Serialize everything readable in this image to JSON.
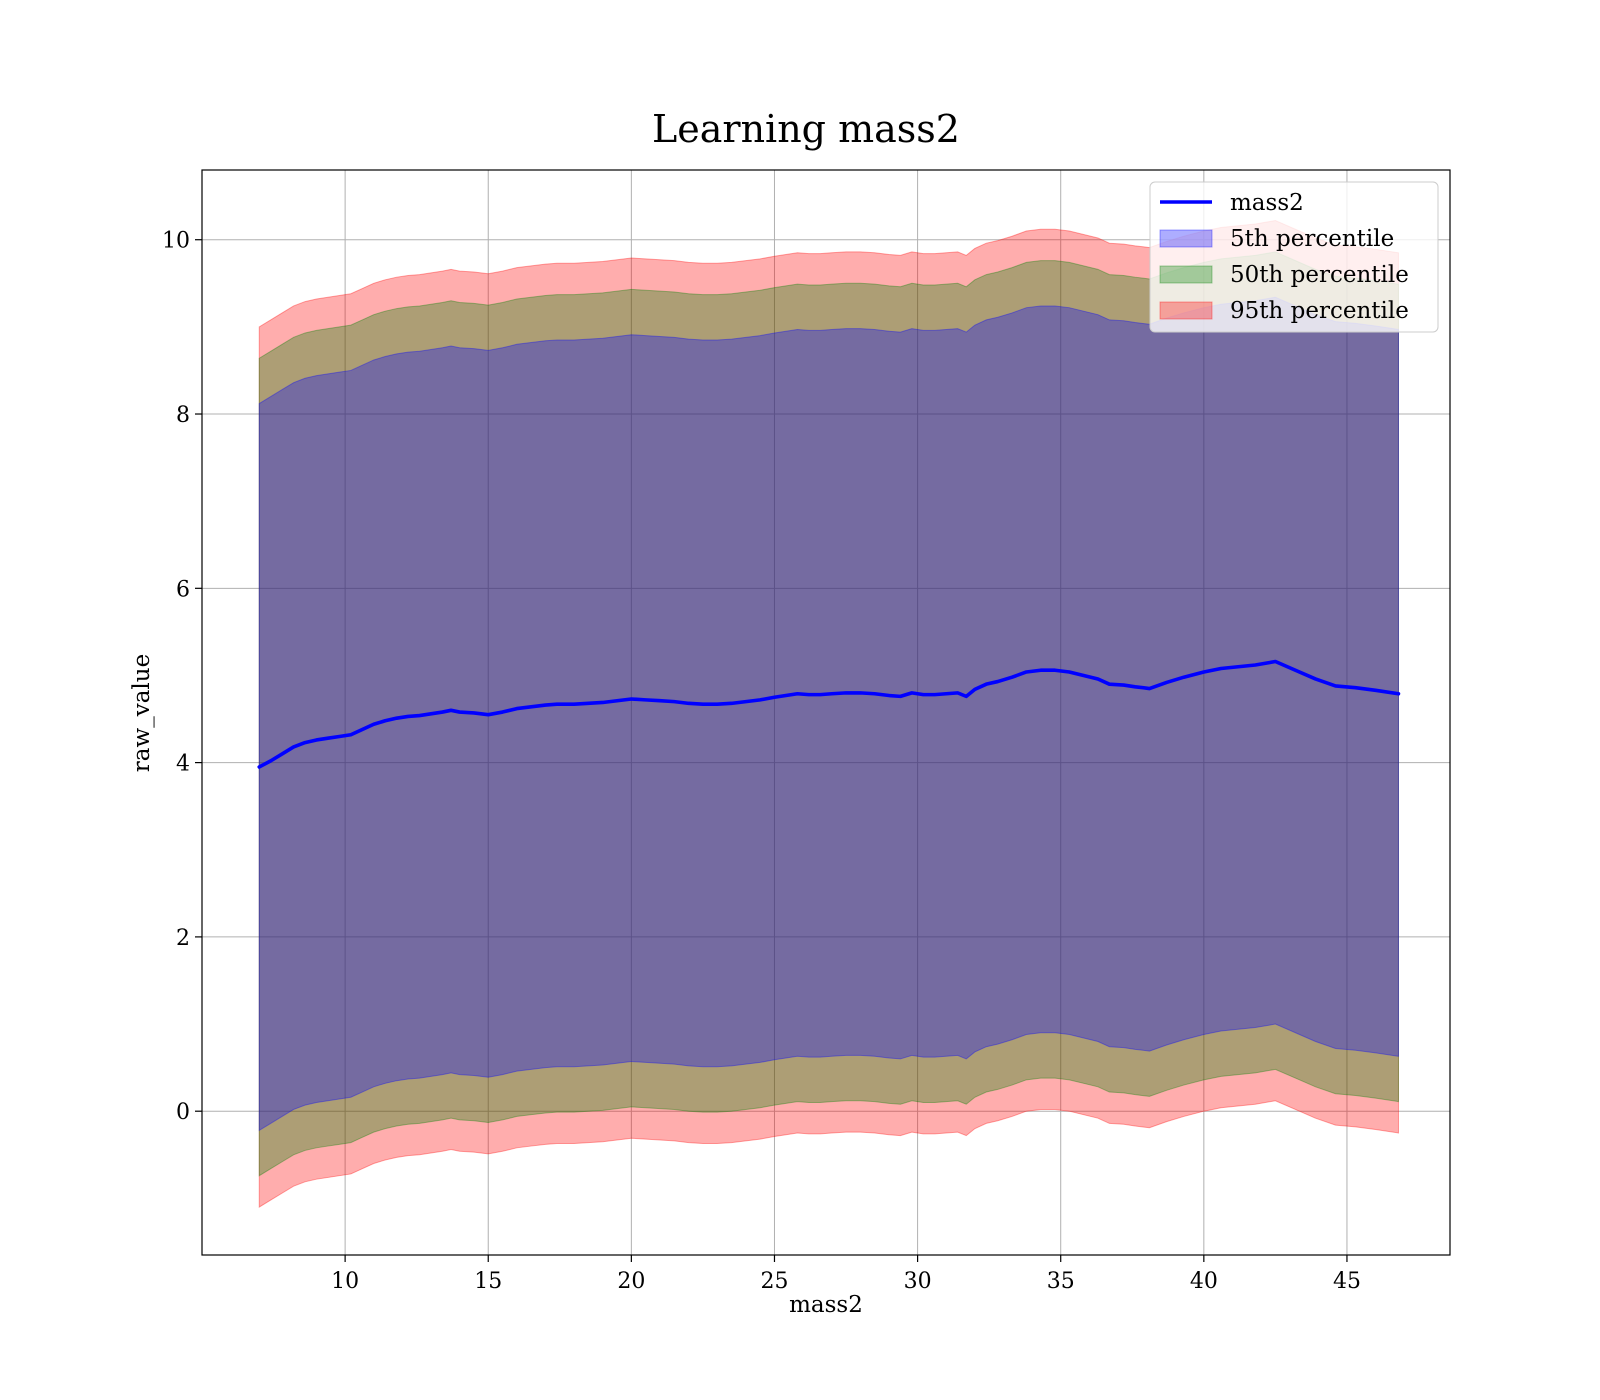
{
  "chart_data": {
    "type": "area",
    "title": "Learning mass2",
    "xlabel": "mass2",
    "ylabel": "raw_value",
    "xlim": [
      5.0,
      48.6
    ],
    "ylim": [
      -1.65,
      10.8
    ],
    "xticks": [
      10,
      15,
      20,
      25,
      30,
      35,
      40,
      45
    ],
    "yticks": [
      0,
      2,
      4,
      6,
      8,
      10
    ],
    "grid": true,
    "legend_position": "top-right",
    "x": [
      7.0,
      7.4,
      7.8,
      8.2,
      8.6,
      9.0,
      9.4,
      9.8,
      10.2,
      10.6,
      11.0,
      11.4,
      11.8,
      12.2,
      12.6,
      13.0,
      13.4,
      13.7,
      14.0,
      14.5,
      15.0,
      15.5,
      16.0,
      16.5,
      17.0,
      17.4,
      18.0,
      18.5,
      19.0,
      19.5,
      20.0,
      20.5,
      21.0,
      21.5,
      22.0,
      22.5,
      23.0,
      23.5,
      24.0,
      24.5,
      25.0,
      25.4,
      25.8,
      26.2,
      26.6,
      27.0,
      27.5,
      28.0,
      28.5,
      29.0,
      29.4,
      29.8,
      30.2,
      30.6,
      31.0,
      31.4,
      31.7,
      32.0,
      32.4,
      32.8,
      33.3,
      33.8,
      34.3,
      34.8,
      35.3,
      35.8,
      36.3,
      36.7,
      37.2,
      37.6,
      38.1,
      38.7,
      39.3,
      40.0,
      40.6,
      41.2,
      41.8,
      42.5,
      43.2,
      43.9,
      44.6,
      45.3,
      46.0,
      46.8
    ],
    "series": [
      {
        "name": "mass2",
        "kind": "line",
        "color": "#0000ff",
        "values": [
          3.95,
          4.02,
          4.1,
          4.18,
          4.23,
          4.26,
          4.28,
          4.3,
          4.32,
          4.38,
          4.44,
          4.48,
          4.51,
          4.53,
          4.54,
          4.56,
          4.58,
          4.6,
          4.58,
          4.57,
          4.55,
          4.58,
          4.62,
          4.64,
          4.66,
          4.67,
          4.67,
          4.68,
          4.69,
          4.71,
          4.73,
          4.72,
          4.71,
          4.7,
          4.68,
          4.67,
          4.67,
          4.68,
          4.7,
          4.72,
          4.75,
          4.77,
          4.79,
          4.78,
          4.78,
          4.79,
          4.8,
          4.8,
          4.79,
          4.77,
          4.76,
          4.8,
          4.78,
          4.78,
          4.79,
          4.8,
          4.76,
          4.84,
          4.9,
          4.93,
          4.98,
          5.04,
          5.06,
          5.06,
          5.04,
          5.0,
          4.96,
          4.9,
          4.89,
          4.87,
          4.85,
          4.92,
          4.98,
          5.04,
          5.08,
          5.1,
          5.12,
          5.16,
          5.06,
          4.96,
          4.88,
          4.86,
          4.83,
          4.79
        ]
      },
      {
        "name": "5th percentile",
        "kind": "band",
        "color": "#0000ff",
        "lower": [
          -0.22,
          -0.14,
          -0.06,
          0.02,
          0.07,
          0.1,
          0.12,
          0.14,
          0.16,
          0.22,
          0.28,
          0.32,
          0.35,
          0.37,
          0.38,
          0.4,
          0.42,
          0.44,
          0.42,
          0.41,
          0.39,
          0.42,
          0.46,
          0.48,
          0.5,
          0.51,
          0.51,
          0.52,
          0.53,
          0.55,
          0.57,
          0.56,
          0.55,
          0.54,
          0.52,
          0.51,
          0.51,
          0.52,
          0.54,
          0.56,
          0.59,
          0.61,
          0.63,
          0.62,
          0.62,
          0.63,
          0.64,
          0.64,
          0.63,
          0.61,
          0.6,
          0.64,
          0.62,
          0.62,
          0.63,
          0.64,
          0.6,
          0.68,
          0.74,
          0.77,
          0.82,
          0.88,
          0.9,
          0.9,
          0.88,
          0.84,
          0.8,
          0.74,
          0.73,
          0.71,
          0.69,
          0.76,
          0.82,
          0.88,
          0.92,
          0.94,
          0.96,
          1.0,
          0.9,
          0.8,
          0.72,
          0.7,
          0.67,
          0.63
        ],
        "upper": [
          8.12,
          8.2,
          8.28,
          8.36,
          8.41,
          8.44,
          8.46,
          8.48,
          8.5,
          8.56,
          8.62,
          8.66,
          8.69,
          8.71,
          8.72,
          8.74,
          8.76,
          8.78,
          8.76,
          8.75,
          8.73,
          8.76,
          8.8,
          8.82,
          8.84,
          8.85,
          8.85,
          8.86,
          8.87,
          8.89,
          8.91,
          8.9,
          8.89,
          8.88,
          8.86,
          8.85,
          8.85,
          8.86,
          8.88,
          8.9,
          8.93,
          8.95,
          8.97,
          8.96,
          8.96,
          8.97,
          8.98,
          8.98,
          8.97,
          8.95,
          8.94,
          8.98,
          8.96,
          8.96,
          8.97,
          8.98,
          8.94,
          9.02,
          9.08,
          9.11,
          9.16,
          9.22,
          9.24,
          9.24,
          9.22,
          9.18,
          9.14,
          9.08,
          9.07,
          9.05,
          9.03,
          9.1,
          9.16,
          9.22,
          9.26,
          9.28,
          9.3,
          9.34,
          9.24,
          9.14,
          9.06,
          9.04,
          9.01,
          8.97
        ]
      },
      {
        "name": "50th percentile",
        "kind": "band",
        "color": "#008000",
        "lower": [
          -0.74,
          -0.66,
          -0.58,
          -0.5,
          -0.45,
          -0.42,
          -0.4,
          -0.38,
          -0.36,
          -0.3,
          -0.24,
          -0.2,
          -0.17,
          -0.15,
          -0.14,
          -0.12,
          -0.1,
          -0.08,
          -0.1,
          -0.11,
          -0.13,
          -0.1,
          -0.06,
          -0.04,
          -0.02,
          -0.01,
          -0.01,
          0.0,
          0.01,
          0.03,
          0.05,
          0.04,
          0.03,
          0.02,
          0.0,
          -0.01,
          -0.01,
          0.0,
          0.02,
          0.04,
          0.07,
          0.09,
          0.11,
          0.1,
          0.1,
          0.11,
          0.12,
          0.12,
          0.11,
          0.09,
          0.08,
          0.12,
          0.1,
          0.1,
          0.11,
          0.12,
          0.08,
          0.16,
          0.22,
          0.25,
          0.3,
          0.36,
          0.38,
          0.38,
          0.36,
          0.32,
          0.28,
          0.22,
          0.21,
          0.19,
          0.17,
          0.24,
          0.3,
          0.36,
          0.4,
          0.42,
          0.44,
          0.48,
          0.38,
          0.28,
          0.2,
          0.18,
          0.15,
          0.11
        ],
        "upper": [
          8.64,
          8.72,
          8.8,
          8.88,
          8.93,
          8.96,
          8.98,
          9.0,
          9.02,
          9.08,
          9.14,
          9.18,
          9.21,
          9.23,
          9.24,
          9.26,
          9.28,
          9.3,
          9.28,
          9.27,
          9.25,
          9.28,
          9.32,
          9.34,
          9.36,
          9.37,
          9.37,
          9.38,
          9.39,
          9.41,
          9.43,
          9.42,
          9.41,
          9.4,
          9.38,
          9.37,
          9.37,
          9.38,
          9.4,
          9.42,
          9.45,
          9.47,
          9.49,
          9.48,
          9.48,
          9.49,
          9.5,
          9.5,
          9.49,
          9.47,
          9.46,
          9.5,
          9.48,
          9.48,
          9.49,
          9.5,
          9.46,
          9.54,
          9.6,
          9.63,
          9.68,
          9.74,
          9.76,
          9.76,
          9.74,
          9.7,
          9.66,
          9.6,
          9.59,
          9.57,
          9.55,
          9.62,
          9.68,
          9.74,
          9.78,
          9.8,
          9.82,
          9.86,
          9.76,
          9.66,
          9.58,
          9.56,
          9.53,
          9.49
        ]
      },
      {
        "name": "95th percentile",
        "kind": "band",
        "color": "#ff0000",
        "lower": [
          -1.1,
          -1.02,
          -0.94,
          -0.86,
          -0.81,
          -0.78,
          -0.76,
          -0.74,
          -0.72,
          -0.66,
          -0.6,
          -0.56,
          -0.53,
          -0.51,
          -0.5,
          -0.48,
          -0.46,
          -0.44,
          -0.46,
          -0.47,
          -0.49,
          -0.46,
          -0.42,
          -0.4,
          -0.38,
          -0.37,
          -0.37,
          -0.36,
          -0.35,
          -0.33,
          -0.31,
          -0.32,
          -0.33,
          -0.34,
          -0.36,
          -0.37,
          -0.37,
          -0.36,
          -0.34,
          -0.32,
          -0.29,
          -0.27,
          -0.25,
          -0.26,
          -0.26,
          -0.25,
          -0.24,
          -0.24,
          -0.25,
          -0.27,
          -0.28,
          -0.24,
          -0.26,
          -0.26,
          -0.25,
          -0.24,
          -0.28,
          -0.2,
          -0.14,
          -0.11,
          -0.06,
          0.0,
          0.02,
          0.02,
          0.0,
          -0.04,
          -0.08,
          -0.14,
          -0.15,
          -0.17,
          -0.19,
          -0.12,
          -0.06,
          0.0,
          0.04,
          0.06,
          0.08,
          0.12,
          0.02,
          -0.08,
          -0.16,
          -0.18,
          -0.21,
          -0.25
        ],
        "upper": [
          9.0,
          9.08,
          9.16,
          9.24,
          9.29,
          9.32,
          9.34,
          9.36,
          9.38,
          9.44,
          9.5,
          9.54,
          9.57,
          9.59,
          9.6,
          9.62,
          9.64,
          9.66,
          9.64,
          9.63,
          9.61,
          9.64,
          9.68,
          9.7,
          9.72,
          9.73,
          9.73,
          9.74,
          9.75,
          9.77,
          9.79,
          9.78,
          9.77,
          9.76,
          9.74,
          9.73,
          9.73,
          9.74,
          9.76,
          9.78,
          9.81,
          9.83,
          9.85,
          9.84,
          9.84,
          9.85,
          9.86,
          9.86,
          9.85,
          9.83,
          9.82,
          9.86,
          9.84,
          9.84,
          9.85,
          9.86,
          9.82,
          9.9,
          9.96,
          9.99,
          10.04,
          10.1,
          10.12,
          10.12,
          10.1,
          10.06,
          10.02,
          9.96,
          9.95,
          9.93,
          9.91,
          9.98,
          10.04,
          10.1,
          10.14,
          10.16,
          10.18,
          10.22,
          10.12,
          10.02,
          9.94,
          9.92,
          9.89,
          9.85
        ]
      }
    ]
  }
}
